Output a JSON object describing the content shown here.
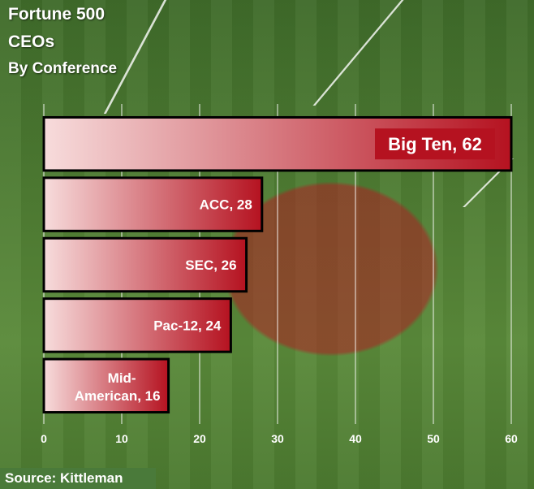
{
  "title": "Fortune 500",
  "title_line2": "CEOs",
  "subtitle": "By Conference",
  "source": "Source: Kittleman",
  "colors": {
    "bar_start": "#f7dcdc",
    "bar_end": "#b51220",
    "label_box": "#b51220",
    "border": "#000000"
  },
  "chart_data": {
    "type": "bar",
    "orientation": "horizontal",
    "categories": [
      "Big Ten",
      "ACC",
      "SEC",
      "Pac-12",
      "Mid-American"
    ],
    "values": [
      62,
      28,
      26,
      24,
      16
    ],
    "data_labels": [
      "Big Ten, 62",
      "ACC, 28",
      "SEC, 26",
      "Pac-12, 24",
      "Mid-American, 16"
    ],
    "xlim": [
      0,
      60
    ],
    "xticks": [
      0,
      10,
      20,
      30,
      40,
      50,
      60
    ],
    "grid": true,
    "legend": "none"
  }
}
